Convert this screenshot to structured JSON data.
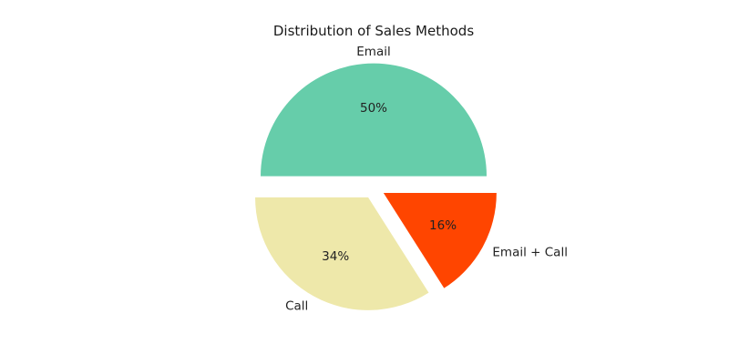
{
  "chart_data": {
    "type": "pie",
    "title": "Distribution of Sales Methods",
    "categories": [
      "Email",
      "Call",
      "Email + Call"
    ],
    "values": [
      50,
      34,
      16
    ],
    "value_labels": [
      "50%",
      "34%",
      "16%"
    ],
    "colors": [
      "#66cdaa",
      "#eee8aa",
      "#ff4500"
    ],
    "exploded": [
      true,
      true,
      true
    ],
    "start_angle_deg": 0,
    "direction": "counterclockwise",
    "legend": "none"
  }
}
